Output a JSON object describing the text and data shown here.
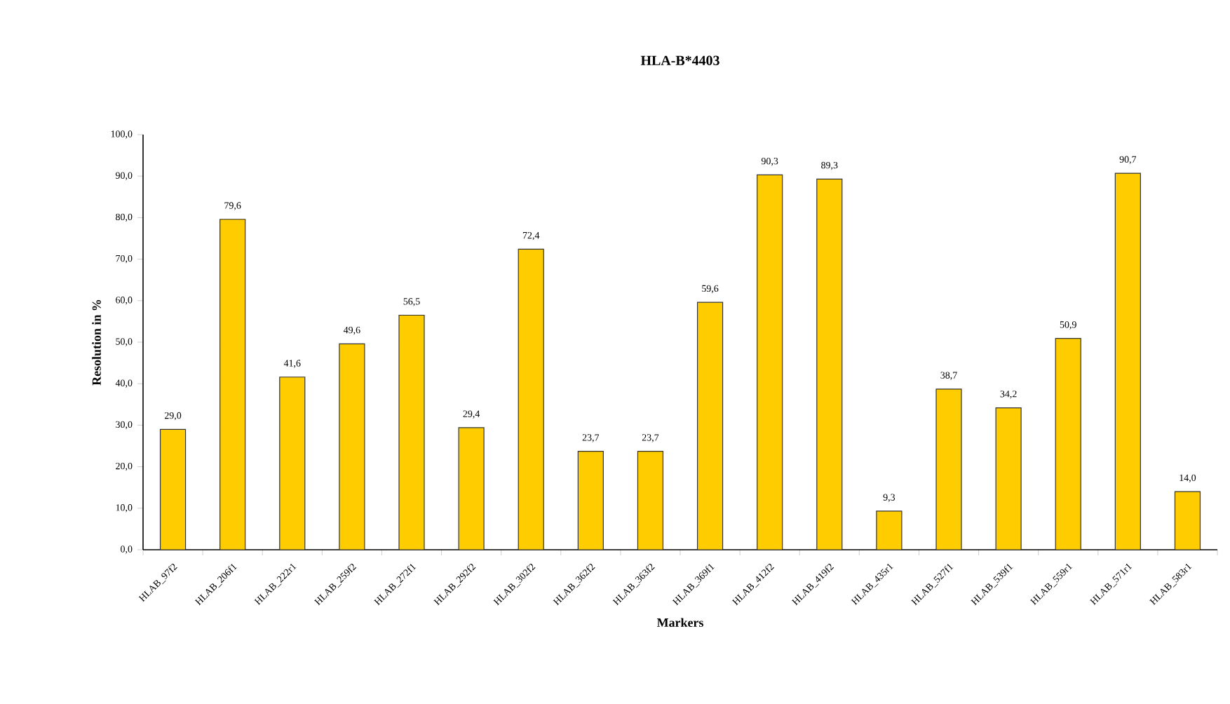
{
  "chart_data": {
    "type": "bar",
    "title": "HLA-B*4403",
    "xlabel": "Markers",
    "ylabel": "Resolution in %",
    "categories": [
      "HLAB_97f2",
      "HLAB_206f1",
      "HLAB_222r1",
      "HLAB_259f2",
      "HLAB_272f1",
      "HLAB_292f2",
      "HLAB_302f2",
      "HLAB_362f2",
      "HLAB_363f2",
      "HLAB_369f1",
      "HLAB_412f2",
      "HLAB_419f2",
      "HLAB_435r1",
      "HLAB_527f1",
      "HLAB_539f1",
      "HLAB_559r1",
      "HLAB_571r1",
      "HLAB_583r1"
    ],
    "values": [
      29.0,
      79.6,
      41.6,
      49.6,
      56.5,
      29.4,
      72.4,
      23.7,
      23.7,
      59.6,
      90.3,
      89.3,
      9.3,
      38.7,
      34.2,
      50.9,
      90.7,
      14.0
    ],
    "value_labels": [
      "29,0",
      "79,6",
      "41,6",
      "49,6",
      "56,5",
      "29,4",
      "72,4",
      "23,7",
      "23,7",
      "59,6",
      "90,3",
      "89,3",
      "9,3",
      "38,7",
      "34,2",
      "50,9",
      "90,7",
      "14,0"
    ],
    "color": "#ffcc00",
    "ylim": [
      0,
      100
    ],
    "yticks": [
      {
        "value": 0,
        "label": "0,0"
      },
      {
        "value": 10,
        "label": "10,0"
      },
      {
        "value": 20,
        "label": "20,0"
      },
      {
        "value": 30,
        "label": "30,0"
      },
      {
        "value": 40,
        "label": "40,0"
      },
      {
        "value": 50,
        "label": "50,0"
      },
      {
        "value": 60,
        "label": "60,0"
      },
      {
        "value": 70,
        "label": "70,0"
      },
      {
        "value": 80,
        "label": "80,0"
      },
      {
        "value": 90,
        "label": "90,0"
      },
      {
        "value": 100,
        "label": "100,0"
      }
    ],
    "grid": false
  }
}
